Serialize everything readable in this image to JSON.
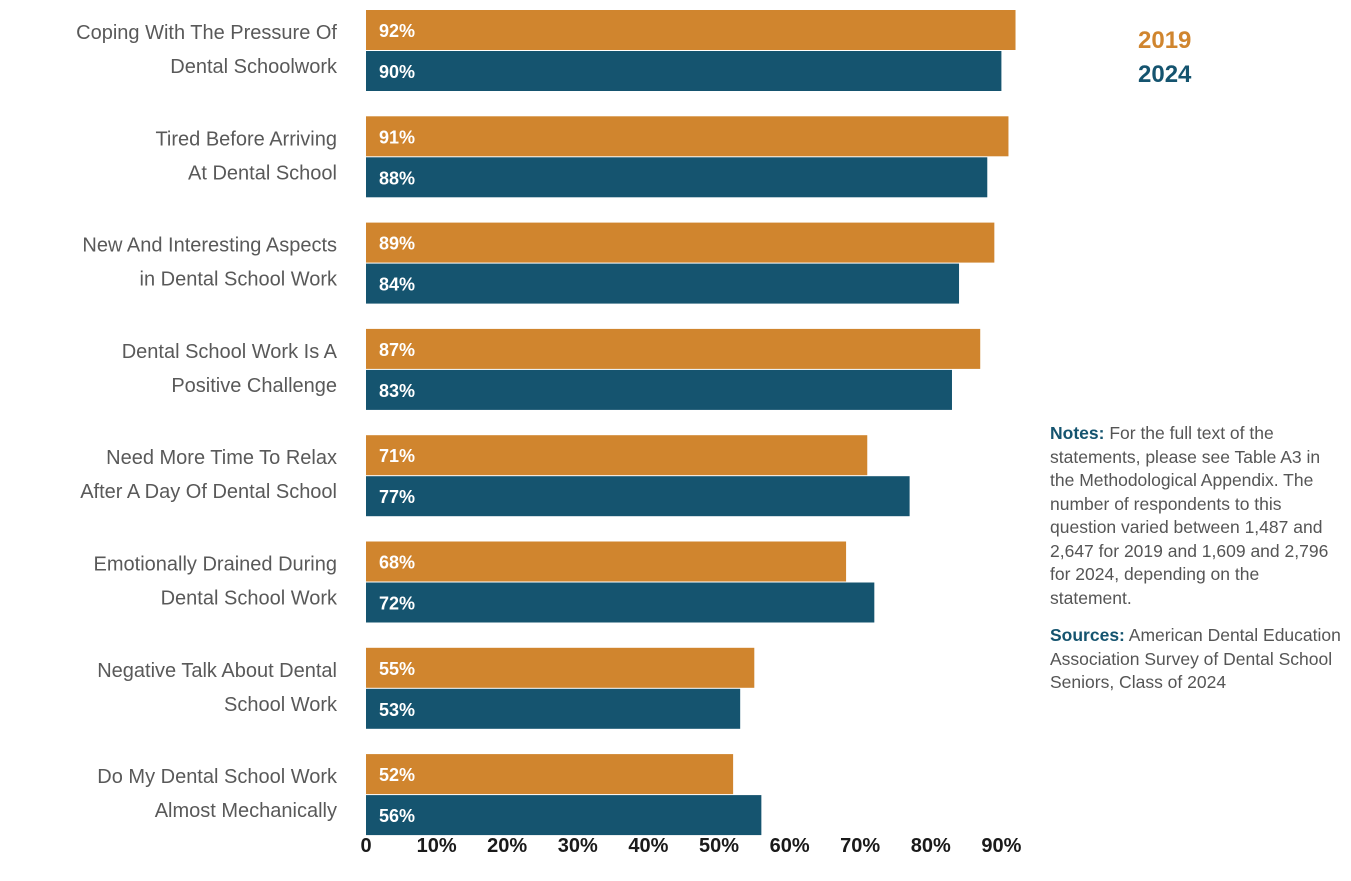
{
  "chart_data": {
    "type": "bar",
    "orientation": "horizontal",
    "categories": [
      [
        "Coping With The Pressure Of",
        "Dental Schoolwork"
      ],
      [
        "Tired Before Arriving",
        "At Dental School"
      ],
      [
        "New And Interesting Aspects",
        "in Dental School Work"
      ],
      [
        "Dental School Work Is A",
        "Positive Challenge"
      ],
      [
        "Need More Time To Relax",
        "After A Day Of Dental School"
      ],
      [
        "Emotionally Drained During",
        "Dental School Work"
      ],
      [
        "Negative Talk About Dental",
        "School Work"
      ],
      [
        "Do My Dental School Work",
        "Almost Mechanically"
      ]
    ],
    "series": [
      {
        "name": "2019",
        "color": "#d0852e",
        "values": [
          92,
          91,
          89,
          87,
          71,
          68,
          55,
          52
        ]
      },
      {
        "name": "2024",
        "color": "#15546f",
        "values": [
          90,
          88,
          84,
          83,
          77,
          72,
          53,
          56
        ]
      }
    ],
    "value_suffix": "%",
    "xlim": [
      0,
      90
    ],
    "xticks": [
      "0",
      "10%",
      "20%",
      "30%",
      "40%",
      "50%",
      "60%",
      "70%",
      "80%",
      "90%"
    ],
    "grid": false,
    "legend_position": "top-right"
  },
  "notes": {
    "notes_label": "Notes:",
    "notes_text": "For the full text of the statements, please see Table A3 in the Methodological Appendix. The number of respondents to this question varied between 1,487 and 2,647 for 2019 and 1,609 and 2,796 for 2024, depending on the statement.",
    "sources_label": "Sources:",
    "sources_text": "American Dental Education Association Survey of Dental School Seniors, Class of 2024"
  }
}
